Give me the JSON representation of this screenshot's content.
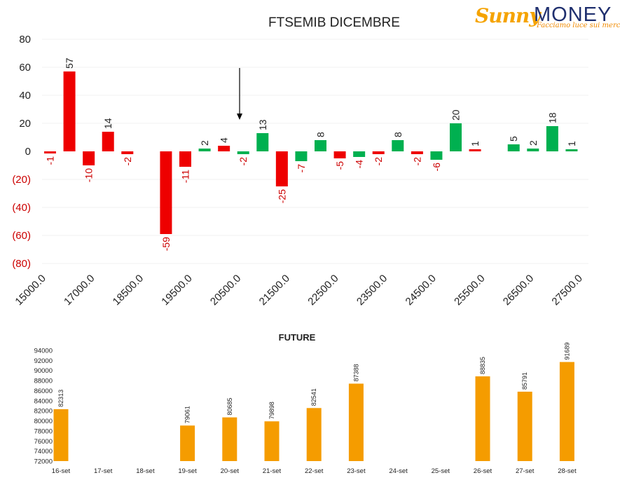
{
  "logo": {
    "brand_left": "Sunny",
    "brand_right": "MONEY",
    "tagline": "Facciamo luce sui mercati"
  },
  "colors": {
    "positive": "#00b050",
    "negative": "#ee0000",
    "future_bar": "#f59c00",
    "text": "#222222",
    "neg_tick": "#cc0000"
  },
  "chart_data": [
    {
      "type": "bar",
      "title": "FTSEMIB DICEMBRE",
      "xlabel": "",
      "ylabel": "",
      "ylim": [
        -80,
        80
      ],
      "y_ticks": [
        {
          "value": 80,
          "label": "80"
        },
        {
          "value": 60,
          "label": "60"
        },
        {
          "value": 40,
          "label": "40"
        },
        {
          "value": 20,
          "label": "20"
        },
        {
          "value": 0,
          "label": "0"
        },
        {
          "value": -20,
          "label": "(20)"
        },
        {
          "value": -40,
          "label": "(40)"
        },
        {
          "value": -60,
          "label": "(60)"
        },
        {
          "value": -80,
          "label": "(80)"
        }
      ],
      "x_tick_labels": [
        "15000.0",
        "17000.0",
        "18500.0",
        "19500.0",
        "20500.0",
        "21500.0",
        "22500.0",
        "23500.0",
        "24500.0",
        "25500.0",
        "26500.0",
        "27500.0"
      ],
      "grid": true,
      "annotation": "arrow",
      "bars": [
        {
          "value": -1,
          "label": "-1",
          "color": "negative"
        },
        {
          "value": 57,
          "label": "57",
          "color": "negative"
        },
        {
          "value": -10,
          "label": "-10",
          "color": "negative"
        },
        {
          "value": 14,
          "label": "14",
          "color": "negative"
        },
        {
          "value": -2,
          "label": "-2",
          "color": "negative"
        },
        {
          "value": null,
          "label": "",
          "color": "negative"
        },
        {
          "value": -59,
          "label": "-59",
          "color": "negative"
        },
        {
          "value": -11,
          "label": "-11",
          "color": "negative"
        },
        {
          "value": 2,
          "label": "2",
          "color": "positive"
        },
        {
          "value": 4,
          "label": "4",
          "color": "negative"
        },
        {
          "value": -2,
          "label": "-2",
          "color": "positive"
        },
        {
          "value": 13,
          "label": "13",
          "color": "positive"
        },
        {
          "value": -25,
          "label": "-25",
          "color": "negative"
        },
        {
          "value": -7,
          "label": "-7",
          "color": "positive"
        },
        {
          "value": 8,
          "label": "8",
          "color": "positive"
        },
        {
          "value": -5,
          "label": "-5",
          "color": "negative"
        },
        {
          "value": -4,
          "label": "-4",
          "color": "positive"
        },
        {
          "value": -2,
          "label": "-2",
          "color": "negative"
        },
        {
          "value": 8,
          "label": "8",
          "color": "positive"
        },
        {
          "value": -2,
          "label": "-2",
          "color": "negative"
        },
        {
          "value": -6,
          "label": "-6",
          "color": "positive"
        },
        {
          "value": 20,
          "label": "20",
          "color": "positive"
        },
        {
          "value": 1,
          "label": "1",
          "color": "negative"
        },
        {
          "value": null,
          "label": "",
          "color": "positive"
        },
        {
          "value": 5,
          "label": "5",
          "color": "positive"
        },
        {
          "value": 2,
          "label": "2",
          "color": "positive"
        },
        {
          "value": 18,
          "label": "18",
          "color": "positive"
        },
        {
          "value": 1,
          "label": "1",
          "color": "positive"
        }
      ]
    },
    {
      "type": "bar",
      "title": "FUTURE",
      "xlabel": "",
      "ylabel": "",
      "ylim": [
        72000,
        94000
      ],
      "y_ticks": [
        94000,
        92000,
        90000,
        88000,
        86000,
        84000,
        82000,
        80000,
        78000,
        76000,
        74000,
        72000
      ],
      "categories": [
        "16-set",
        "17-set",
        "18-set",
        "19-set",
        "20-set",
        "21-set",
        "22-set",
        "23-set",
        "24-set",
        "25-set",
        "26-set",
        "27-set",
        "28-set"
      ],
      "values": [
        82313,
        null,
        null,
        79061,
        80685,
        79898,
        82541,
        87388,
        null,
        null,
        88835,
        85791,
        91689
      ],
      "labels": [
        "82313",
        "",
        "",
        "79061",
        "80685",
        "79898",
        "82541",
        "87388",
        "",
        "",
        "88835",
        "85791",
        "91689"
      ],
      "grid": false
    }
  ]
}
